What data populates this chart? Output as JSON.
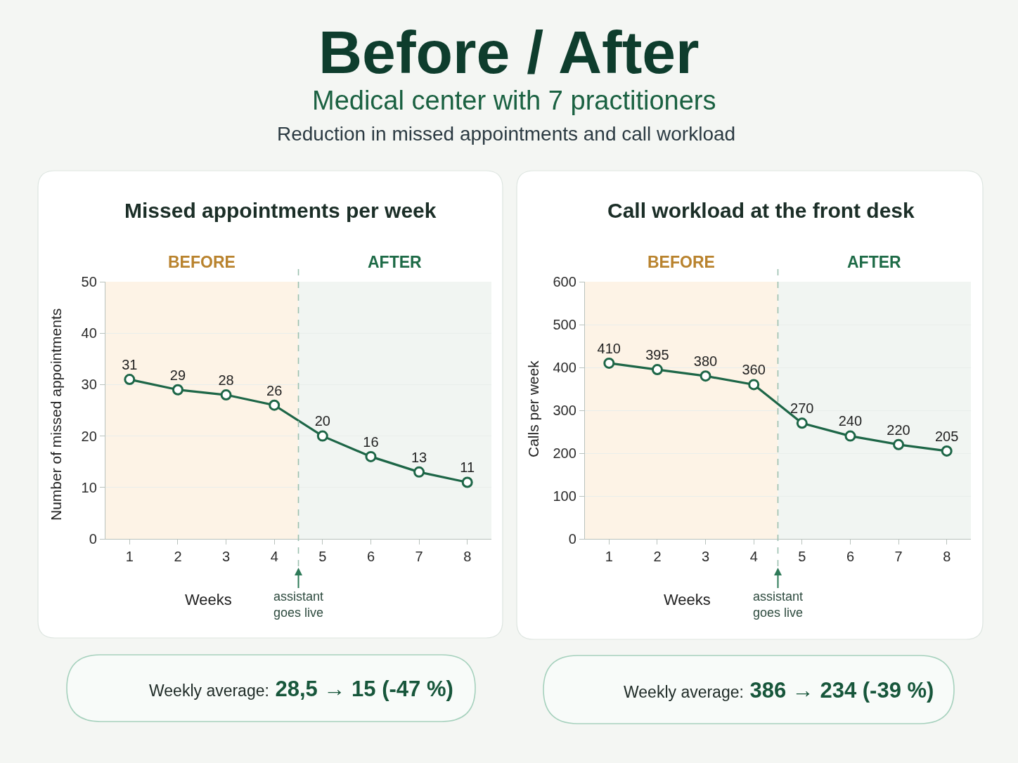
{
  "chart_data": [
    {
      "type": "other",
      "title": "Before / After",
      "subtitle": "Medical center with 7 practitioners",
      "annotations": [
        "Reduction in missed appointments and call workload"
      ]
    },
    {
      "type": "line",
      "title": "Missed appointments per week",
      "xlabel": "Weeks",
      "ylabel": "Number of missed appointments",
      "x": [
        1,
        2,
        3,
        4,
        5,
        6,
        7,
        8
      ],
      "xlim": [
        0.5,
        8.5
      ],
      "xticks": [
        1,
        2,
        3,
        4,
        5,
        6,
        7,
        8
      ],
      "ylim": [
        0,
        50
      ],
      "yticks": [
        0,
        10,
        20,
        30,
        40,
        50
      ],
      "series": [
        {
          "color": "#1d6647",
          "values": [
            31,
            29,
            28,
            26,
            20,
            16,
            13,
            11
          ]
        }
      ],
      "marker": "circle",
      "line_style": "solid",
      "data_labels": true,
      "grid": "y",
      "bands": [
        {
          "axis": "x",
          "from": 0.5,
          "to": 4.5,
          "label": "BEFORE",
          "color": "#fdf3e6"
        },
        {
          "axis": "x",
          "from": 4.5,
          "to": 8.5,
          "label": "AFTER",
          "color": "#f1f5f2"
        }
      ],
      "ref_lines": [
        {
          "axis": "x",
          "value": 4.5,
          "label": "assistant goes live",
          "line_style": "dashed",
          "color": "#9cc0b0"
        }
      ],
      "annotations": [
        "Weekly average: 28,5 → 15 (-47 %)"
      ]
    },
    {
      "type": "line",
      "title": "Call workload at the front desk",
      "xlabel": "Weeks",
      "ylabel": "Calls per week",
      "x": [
        1,
        2,
        3,
        4,
        5,
        6,
        7,
        8
      ],
      "xlim": [
        0.5,
        8.5
      ],
      "xticks": [
        1,
        2,
        3,
        4,
        5,
        6,
        7,
        8
      ],
      "ylim": [
        0,
        600
      ],
      "yticks": [
        0,
        100,
        200,
        300,
        400,
        500,
        600
      ],
      "series": [
        {
          "color": "#1d6647",
          "values": [
            410,
            395,
            380,
            360,
            270,
            240,
            220,
            205
          ]
        }
      ],
      "marker": "circle",
      "line_style": "solid",
      "data_labels": true,
      "grid": "y",
      "bands": [
        {
          "axis": "x",
          "from": 0.5,
          "to": 4.5,
          "label": "BEFORE",
          "color": "#fdf3e6"
        },
        {
          "axis": "x",
          "from": 4.5,
          "to": 8.5,
          "label": "AFTER",
          "color": "#f1f5f2"
        }
      ],
      "ref_lines": [
        {
          "axis": "x",
          "value": 4.5,
          "label": "assistant goes live",
          "line_style": "dashed",
          "color": "#9cc0b0"
        }
      ],
      "annotations": [
        "Weekly average: 386 → 234 (-39 %)"
      ]
    }
  ]
}
